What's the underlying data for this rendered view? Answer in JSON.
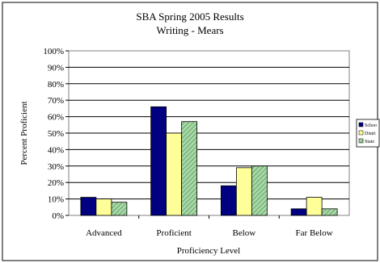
{
  "chart_data": {
    "type": "bar",
    "title": "SBA Spring 2005 Results",
    "subtitle": "Writing - Mears",
    "xlabel": "Proficiency Level",
    "ylabel": "Percent Proficient",
    "categories": [
      "Advanced",
      "Proficient",
      "Below",
      "Far Below"
    ],
    "yticks": [
      "0%",
      "10%",
      "20%",
      "30%",
      "40%",
      "50%",
      "60%",
      "70%",
      "80%",
      "90%",
      "100%"
    ],
    "ylim": [
      0,
      100
    ],
    "grid": true,
    "legend_position": "right",
    "series": [
      {
        "name": "Schoo",
        "color": "#000080",
        "pattern": "solid",
        "values": [
          11,
          66,
          18,
          4
        ]
      },
      {
        "name": "Distri",
        "color": "#ffff99",
        "pattern": "solid",
        "values": [
          10,
          50,
          29,
          11
        ]
      },
      {
        "name": "State",
        "color": "#99cc99",
        "pattern": "hatch",
        "values": [
          8,
          57,
          30,
          4
        ]
      }
    ]
  }
}
